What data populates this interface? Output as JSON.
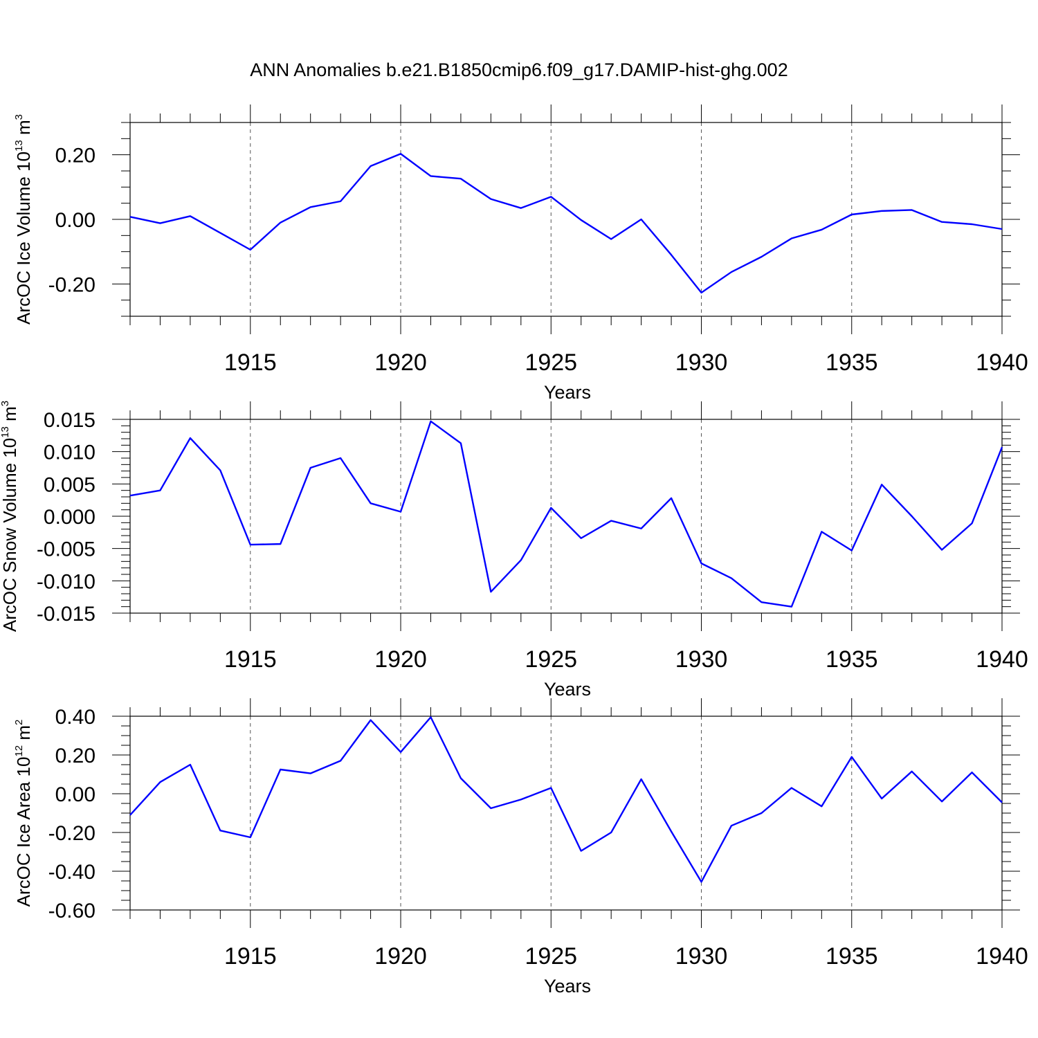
{
  "figure": {
    "title": "ANN Anomalies b.e21.B1850cmip6.f09_g17.DAMIP-hist-ghg.002"
  },
  "chart_data": [
    {
      "type": "line",
      "ylabel": {
        "base": "ArcOC Ice Volume 10",
        "exp": "13",
        "unit": " m",
        "unit_exp": "3"
      },
      "xlabel": "Years",
      "xlim": [
        1911,
        1940
      ],
      "ylim": [
        -0.3,
        0.3
      ],
      "x_major_ticks": [
        1915,
        1920,
        1925,
        1930,
        1935,
        1940
      ],
      "y_major_ticks": [
        -0.2,
        0.0,
        0.2
      ],
      "y_tick_labels": [
        "-0.20",
        "0.00",
        "0.20"
      ],
      "y_minor_step": 0.05,
      "vertical_grid": true,
      "line_color": "#0000ff",
      "x": [
        1911,
        1912,
        1913,
        1914,
        1915,
        1916,
        1917,
        1918,
        1919,
        1920,
        1921,
        1922,
        1923,
        1924,
        1925,
        1926,
        1927,
        1928,
        1929,
        1930,
        1931,
        1932,
        1933,
        1934,
        1935,
        1936,
        1937,
        1938,
        1939,
        1940
      ],
      "values": [
        0.008,
        -0.012,
        0.01,
        -0.042,
        -0.094,
        -0.01,
        0.038,
        0.056,
        0.165,
        0.203,
        0.134,
        0.126,
        0.063,
        0.035,
        0.07,
        -0.002,
        -0.061,
        0.0,
        -0.11,
        -0.227,
        -0.163,
        -0.116,
        -0.059,
        -0.032,
        0.015,
        0.026,
        0.029,
        -0.008,
        -0.015,
        -0.03
      ]
    },
    {
      "type": "line",
      "ylabel": {
        "base": "ArcOC Snow Volume 10",
        "exp": "13",
        "unit": " m",
        "unit_exp": "3"
      },
      "xlabel": "Years",
      "xlim": [
        1911,
        1940
      ],
      "ylim": [
        -0.015,
        0.015
      ],
      "x_major_ticks": [
        1915,
        1920,
        1925,
        1930,
        1935,
        1940
      ],
      "y_major_ticks": [
        -0.015,
        -0.01,
        -0.005,
        0.0,
        0.005,
        0.01,
        0.015
      ],
      "y_tick_labels": [
        "-0.015",
        "-0.010",
        "-0.005",
        "0.000",
        "0.005",
        "0.010",
        "0.015"
      ],
      "y_minor_step": 0.001,
      "vertical_grid": true,
      "line_color": "#0000ff",
      "x": [
        1911,
        1912,
        1913,
        1914,
        1915,
        1916,
        1917,
        1918,
        1919,
        1920,
        1921,
        1922,
        1923,
        1924,
        1925,
        1926,
        1927,
        1928,
        1929,
        1930,
        1931,
        1932,
        1933,
        1934,
        1935,
        1936,
        1937,
        1938,
        1939,
        1940
      ],
      "values": [
        0.0032,
        0.004,
        0.0121,
        0.0071,
        -0.0044,
        -0.0043,
        0.0075,
        0.009,
        0.002,
        0.0007,
        0.0147,
        0.0113,
        -0.0117,
        -0.0068,
        0.0013,
        -0.0034,
        -0.0007,
        -0.0019,
        0.0028,
        -0.0073,
        -0.0096,
        -0.0133,
        -0.014,
        -0.0024,
        -0.0053,
        0.0049,
        0.0,
        -0.0052,
        -0.0011,
        0.0107
      ]
    },
    {
      "type": "line",
      "ylabel": {
        "base": "ArcOC Ice Area 10",
        "exp": "12",
        "unit": " m",
        "unit_exp": "2"
      },
      "xlabel": "Years",
      "xlim": [
        1911,
        1940
      ],
      "ylim": [
        -0.6,
        0.4
      ],
      "x_major_ticks": [
        1915,
        1920,
        1925,
        1930,
        1935,
        1940
      ],
      "y_major_ticks": [
        -0.6,
        -0.4,
        -0.2,
        0.0,
        0.2,
        0.4
      ],
      "y_tick_labels": [
        "-0.60",
        "-0.40",
        "-0.20",
        "0.00",
        "0.20",
        "0.40"
      ],
      "y_minor_step": 0.05,
      "vertical_grid": true,
      "line_color": "#0000ff",
      "x": [
        1911,
        1912,
        1913,
        1914,
        1915,
        1916,
        1917,
        1918,
        1919,
        1920,
        1921,
        1922,
        1923,
        1924,
        1925,
        1926,
        1927,
        1928,
        1929,
        1930,
        1931,
        1932,
        1933,
        1934,
        1935,
        1936,
        1937,
        1938,
        1939,
        1940
      ],
      "values": [
        -0.11,
        0.06,
        0.15,
        -0.19,
        -0.225,
        0.125,
        0.105,
        0.17,
        0.38,
        0.215,
        0.395,
        0.08,
        -0.075,
        -0.03,
        0.03,
        -0.295,
        -0.2,
        0.075,
        -0.195,
        -0.455,
        -0.165,
        -0.1,
        0.03,
        -0.065,
        0.19,
        -0.025,
        0.115,
        -0.04,
        0.11,
        -0.045
      ]
    }
  ]
}
